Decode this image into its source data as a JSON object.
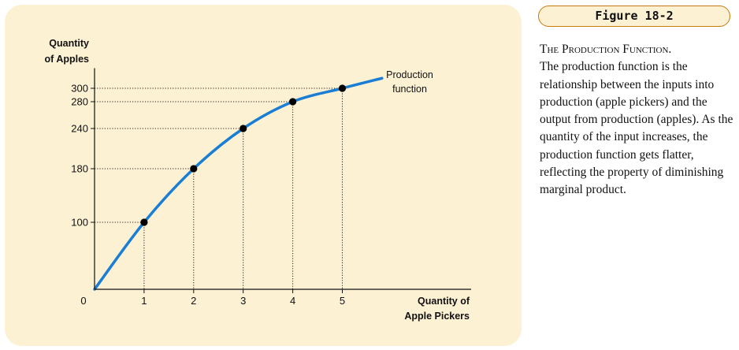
{
  "figure": {
    "badge": "Figure 18-2",
    "caption_heading": "The Production Function.",
    "caption_body": "The production function is the relationship between the inputs into production (apple pickers) and the output from production (apples). As the quantity of the input increases, the production function gets flatter, reflecting the property of diminishing marginal product."
  },
  "colors": {
    "panel": "#fdf1d3",
    "curve": "#1a7fd4",
    "badge_border": "#c47b10"
  },
  "chart_data": {
    "type": "line",
    "xlabel": [
      "Quantity of",
      "Apple Pickers"
    ],
    "ylabel": [
      "Quantity",
      "of Apples"
    ],
    "x_ticks": [
      "0",
      "1",
      "2",
      "3",
      "4",
      "5"
    ],
    "y_ticks": [
      "100",
      "180",
      "240",
      "280",
      "300"
    ],
    "xlim": [
      0,
      7.6
    ],
    "ylim": [
      0,
      330
    ],
    "grid": false,
    "series": [
      {
        "name": "Production function",
        "x": [
          0,
          1,
          2,
          3,
          4,
          5,
          5.8
        ],
        "y": [
          0,
          100,
          180,
          240,
          280,
          300,
          315
        ]
      }
    ],
    "marked_points": [
      {
        "x": 1,
        "y": 100
      },
      {
        "x": 2,
        "y": 180
      },
      {
        "x": 3,
        "y": 240
      },
      {
        "x": 4,
        "y": 280
      },
      {
        "x": 5,
        "y": 300
      }
    ],
    "curve_label": [
      "Production",
      "function"
    ]
  }
}
